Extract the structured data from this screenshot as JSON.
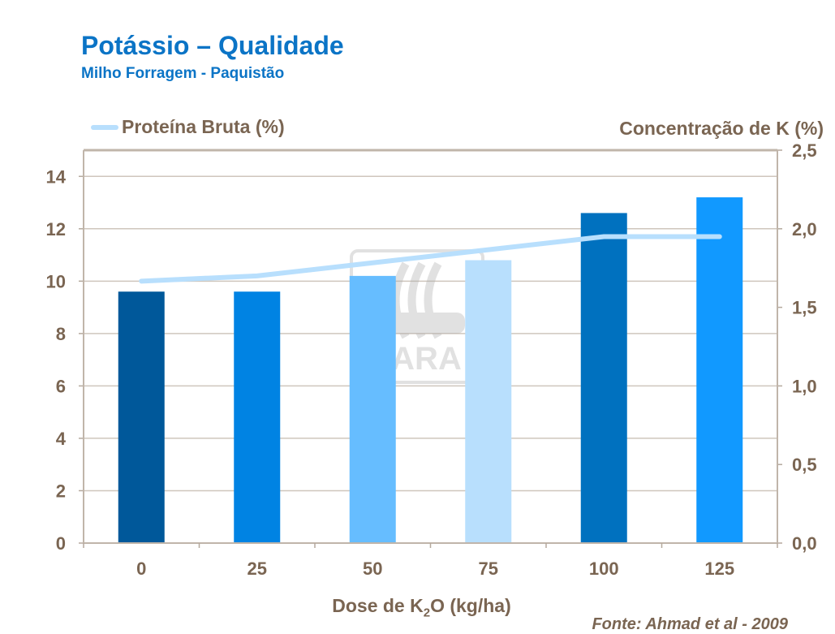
{
  "header": {
    "title": "Potássio – Qualidade",
    "subtitle": "Milho Forragem - Paquistão"
  },
  "source": "Fonte: Ahmad et al - 2009",
  "chart_data": {
    "type": "bar",
    "categories": [
      "0",
      "25",
      "50",
      "75",
      "100",
      "125"
    ],
    "xlabel": "Dose de K2O (kg/ha)",
    "xlabel_parts": {
      "pre": "Dose de K",
      "sub": "2",
      "post": "O (kg/ha)"
    },
    "bars": {
      "axis": "right",
      "ylabel": "Concentração de K (%)",
      "values": [
        1.6,
        1.6,
        1.7,
        1.8,
        2.1,
        2.2
      ],
      "colors": [
        "#00589a",
        "#0083e3",
        "#66bdff",
        "#b8dffd",
        "#0071bf",
        "#1199ff"
      ]
    },
    "line": {
      "axis": "left",
      "name": "Proteína Bruta (%)",
      "values": [
        10.0,
        10.2,
        10.7,
        11.2,
        11.7,
        11.7
      ],
      "color": "#b8dffd"
    },
    "left_axis": {
      "ylim": [
        0,
        15
      ],
      "ticks": [
        "0",
        "2",
        "4",
        "6",
        "8",
        "10",
        "12",
        "14"
      ],
      "tick_values": [
        0,
        2,
        4,
        6,
        8,
        10,
        12,
        14
      ]
    },
    "right_axis": {
      "ylim": [
        0,
        2.5
      ],
      "ticks": [
        "0,0",
        "0,5",
        "1,0",
        "1,5",
        "2,0",
        "2,5"
      ],
      "tick_values": [
        0,
        0.5,
        1,
        1.5,
        2,
        2.5
      ]
    },
    "grid": true,
    "legend": "top-left",
    "watermark": "YARA"
  }
}
